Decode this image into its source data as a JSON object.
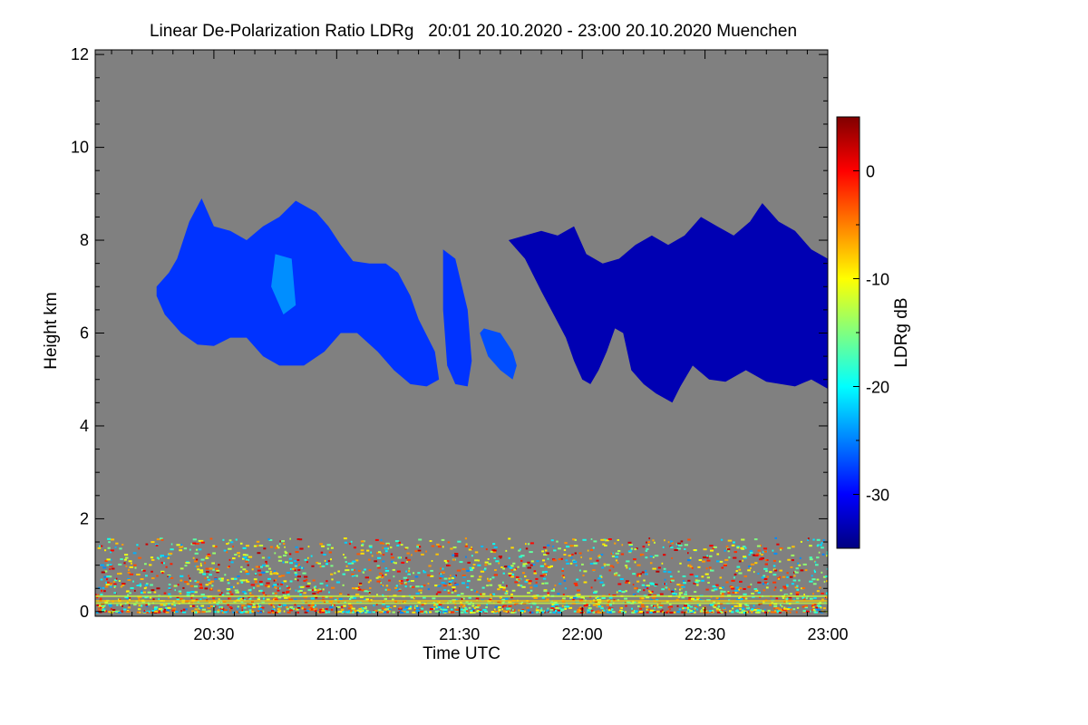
{
  "chart_data": {
    "type": "heatmap",
    "title": "Linear De-Polarization Ratio LDRg   20:01 20.10.2020 - 23:00 20.10.2020 Muenchen",
    "xlabel": "Time UTC",
    "ylabel": "Height km",
    "xlim_minutes_utc": [
      1201,
      1380
    ],
    "ylim_km": [
      -0.1,
      12.1
    ],
    "x_ticks": [
      {
        "label": "20:30",
        "value": 1230
      },
      {
        "label": "21:00",
        "value": 1260
      },
      {
        "label": "21:30",
        "value": 1290
      },
      {
        "label": "22:00",
        "value": 1320
      },
      {
        "label": "22:30",
        "value": 1350
      },
      {
        "label": "23:00",
        "value": 1380
      }
    ],
    "x_minor_step_minutes": 5,
    "y_ticks": [
      {
        "label": "0",
        "value": 0
      },
      {
        "label": "2",
        "value": 2
      },
      {
        "label": "4",
        "value": 4
      },
      {
        "label": "6",
        "value": 6
      },
      {
        "label": "8",
        "value": 8
      },
      {
        "label": "10",
        "value": 10
      },
      {
        "label": "12",
        "value": 12
      }
    ],
    "y_minor_step_km": 0.5,
    "colorbar": {
      "label": "LDRg dB",
      "range": [
        -35,
        5
      ],
      "ticks": [
        {
          "label": "0",
          "value": 0
        },
        {
          "label": "-10",
          "value": -10
        },
        {
          "label": "-20",
          "value": -20
        },
        {
          "label": "-30",
          "value": -30
        }
      ],
      "colormap": [
        "#000080",
        "#0000ff",
        "#0080ff",
        "#00ffff",
        "#80ff80",
        "#ffff00",
        "#ff8000",
        "#ff0000",
        "#800000"
      ]
    },
    "background_color": "#808080",
    "cloud_layers": [
      {
        "name": "cloud-1",
        "ldr_db": -28,
        "outline": [
          [
            1216,
            6.8
          ],
          [
            1218,
            6.4
          ],
          [
            1222,
            6.0
          ],
          [
            1226,
            5.75
          ],
          [
            1230,
            5.72
          ],
          [
            1234,
            5.9
          ],
          [
            1238,
            5.9
          ],
          [
            1242,
            5.5
          ],
          [
            1246,
            5.3
          ],
          [
            1252,
            5.3
          ],
          [
            1257,
            5.6
          ],
          [
            1261,
            6.0
          ],
          [
            1265,
            6.0
          ],
          [
            1270,
            5.6
          ],
          [
            1274,
            5.2
          ],
          [
            1278,
            4.9
          ],
          [
            1282,
            4.85
          ],
          [
            1285,
            5.0
          ],
          [
            1284,
            5.6
          ],
          [
            1280,
            6.3
          ],
          [
            1278,
            6.8
          ],
          [
            1275,
            7.3
          ],
          [
            1272,
            7.5
          ],
          [
            1268,
            7.5
          ],
          [
            1264,
            7.55
          ],
          [
            1261,
            7.9
          ],
          [
            1258,
            8.3
          ],
          [
            1255,
            8.6
          ],
          [
            1250,
            8.85
          ],
          [
            1246,
            8.5
          ],
          [
            1242,
            8.3
          ],
          [
            1238,
            8.0
          ],
          [
            1234,
            8.2
          ],
          [
            1230,
            8.3
          ],
          [
            1227,
            8.9
          ],
          [
            1224,
            8.4
          ],
          [
            1221,
            7.6
          ],
          [
            1219,
            7.3
          ],
          [
            1216,
            7.0
          ]
        ]
      },
      {
        "name": "cloud-2",
        "ldr_db": -28,
        "outline": [
          [
            1286,
            7.8
          ],
          [
            1289,
            7.6
          ],
          [
            1292,
            6.5
          ],
          [
            1293,
            5.4
          ],
          [
            1292,
            4.85
          ],
          [
            1289,
            4.9
          ],
          [
            1287,
            5.3
          ],
          [
            1286,
            6.5
          ]
        ]
      },
      {
        "name": "cloud-3",
        "ldr_db": -27,
        "outline": [
          [
            1296,
            6.1
          ],
          [
            1300,
            6.0
          ],
          [
            1303,
            5.6
          ],
          [
            1304,
            5.3
          ],
          [
            1303,
            5.0
          ],
          [
            1300,
            5.2
          ],
          [
            1297,
            5.5
          ],
          [
            1295,
            6.0
          ]
        ]
      },
      {
        "name": "cloud-4",
        "ldr_db": -33,
        "outline": [
          [
            1302,
            8.0
          ],
          [
            1306,
            7.6
          ],
          [
            1310,
            6.9
          ],
          [
            1313,
            6.4
          ],
          [
            1316,
            5.9
          ],
          [
            1318,
            5.4
          ],
          [
            1320,
            5.0
          ],
          [
            1322,
            4.9
          ],
          [
            1324,
            5.2
          ],
          [
            1326,
            5.6
          ],
          [
            1328,
            6.1
          ],
          [
            1330,
            6.0
          ],
          [
            1332,
            5.2
          ],
          [
            1335,
            4.9
          ],
          [
            1338,
            4.7
          ],
          [
            1342,
            4.5
          ],
          [
            1344,
            4.85
          ],
          [
            1347,
            5.3
          ],
          [
            1351,
            5.0
          ],
          [
            1355,
            4.95
          ],
          [
            1360,
            5.2
          ],
          [
            1365,
            4.95
          ],
          [
            1372,
            4.85
          ],
          [
            1376,
            5.0
          ],
          [
            1380,
            4.8
          ],
          [
            1380,
            7.6
          ],
          [
            1376,
            7.8
          ],
          [
            1372,
            8.2
          ],
          [
            1368,
            8.4
          ],
          [
            1364,
            8.8
          ],
          [
            1361,
            8.4
          ],
          [
            1357,
            8.1
          ],
          [
            1353,
            8.3
          ],
          [
            1349,
            8.5
          ],
          [
            1345,
            8.1
          ],
          [
            1341,
            7.9
          ],
          [
            1337,
            8.1
          ],
          [
            1333,
            7.9
          ],
          [
            1329,
            7.6
          ],
          [
            1325,
            7.5
          ],
          [
            1321,
            7.7
          ],
          [
            1318,
            8.3
          ],
          [
            1314,
            8.1
          ],
          [
            1310,
            8.2
          ],
          [
            1306,
            8.1
          ]
        ]
      }
    ],
    "noise_band_km": [
      0.0,
      1.6
    ]
  }
}
